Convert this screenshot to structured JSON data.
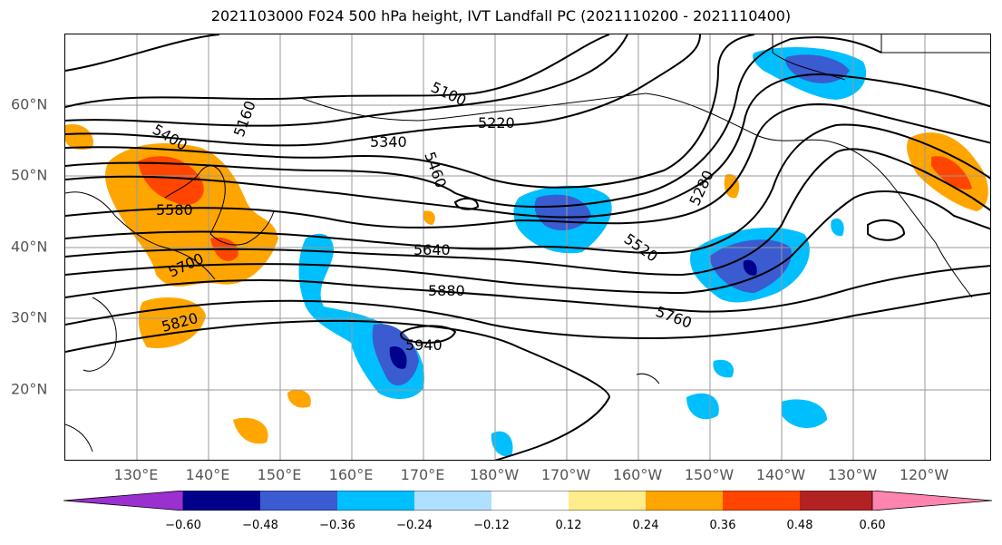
{
  "title": "2021103000 F024 500 hPa height, IVT Landfall PC (2021110200 - 2021110400)",
  "map": {
    "lat_labels": [
      "60°N",
      "50°N",
      "40°N",
      "30°N",
      "20°N"
    ],
    "lon_labels": [
      "130°E",
      "140°E",
      "150°E",
      "160°E",
      "170°E",
      "180°W",
      "170°W",
      "160°W",
      "150°W",
      "140°W",
      "130°W",
      "120°W"
    ],
    "contour_labels": [
      "5100",
      "5160",
      "5220",
      "5280",
      "5340",
      "5400",
      "5460",
      "5520",
      "5580",
      "5640",
      "5700",
      "5760",
      "5820",
      "5880",
      "5940"
    ]
  },
  "colorbar": {
    "ticks": [
      "−0.60",
      "−0.48",
      "−0.36",
      "−0.24",
      "−0.12",
      "0.12",
      "0.24",
      "0.36",
      "0.48",
      "0.60"
    ],
    "colors": [
      "#9b30d0",
      "#00008b",
      "#3a5cd0",
      "#00bfff",
      "#b0e0ff",
      "#ffffff",
      "#ffec8b",
      "#ffa500",
      "#ff4500",
      "#b22222",
      "#ff85b0"
    ]
  },
  "colors": {
    "grid": "#9a9a9a",
    "contour": "#000000",
    "coast": "#000000"
  }
}
